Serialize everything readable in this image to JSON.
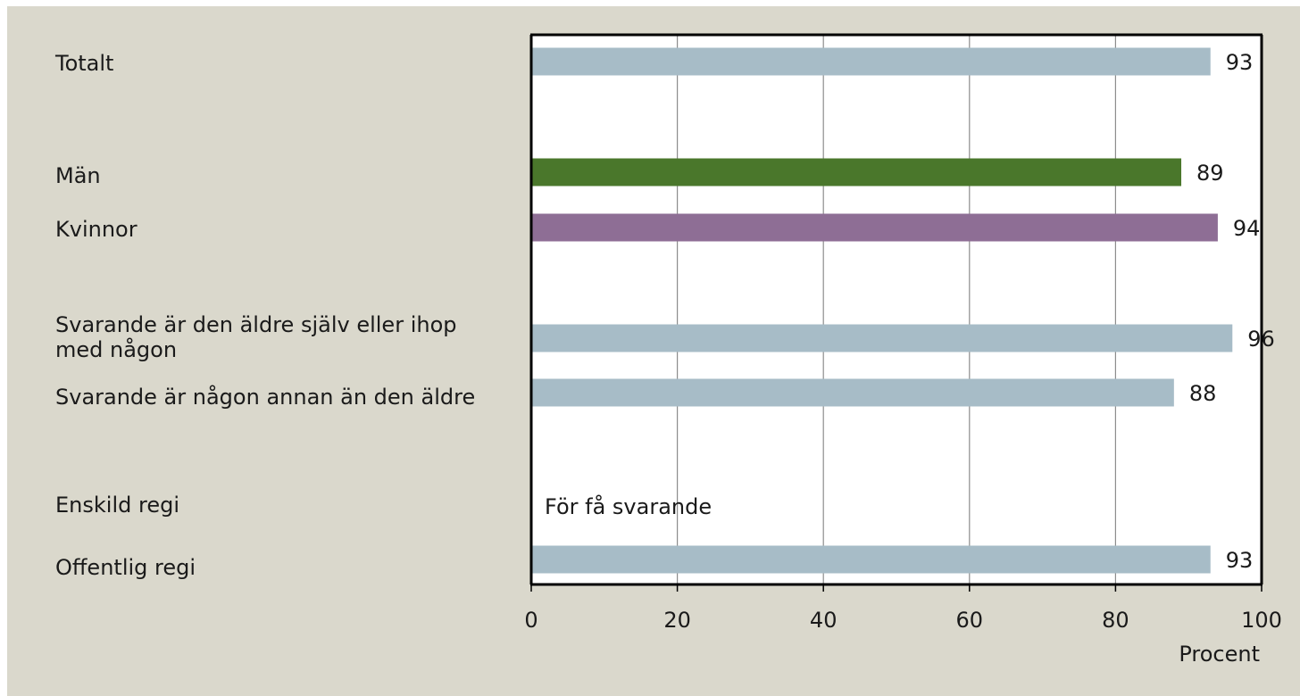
{
  "chart_data": {
    "type": "bar",
    "orientation": "horizontal",
    "categories": [
      "Totalt",
      "Män",
      "Kvinnor",
      "Svarande är den äldre själv eller ihop med någon",
      "Svarande är någon annan än den äldre",
      "Enskild regi",
      "Offentlig regi"
    ],
    "values": [
      93,
      89,
      94,
      96,
      88,
      null,
      93
    ],
    "bar_colors": [
      "#a7bcc7",
      "#4a772b",
      "#8e6e95",
      "#a7bcc7",
      "#a7bcc7",
      "#a7bcc7",
      "#a7bcc7"
    ],
    "annotations": [
      {
        "category": "Enskild regi",
        "text": "För få svarande"
      }
    ],
    "xlabel": "Procent",
    "xlim": [
      0,
      100
    ],
    "xticks": [
      "0",
      "20",
      "40",
      "60",
      "80",
      "100"
    ],
    "grid": true,
    "legend": "none"
  }
}
